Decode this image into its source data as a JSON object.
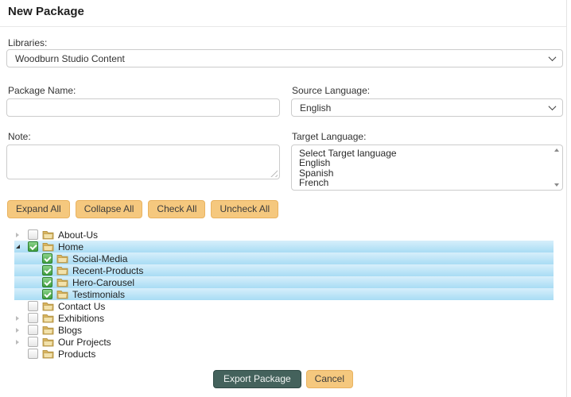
{
  "page": {
    "title": "New Package"
  },
  "form": {
    "libraries": {
      "label": "Libraries:",
      "value": "Woodburn Studio Content"
    },
    "package_name": {
      "label": "Package Name:",
      "value": ""
    },
    "source_language": {
      "label": "Source Language:",
      "value": "English"
    },
    "note": {
      "label": "Note:",
      "value": ""
    },
    "target_language": {
      "label": "Target Language:",
      "options": [
        "Select Target language",
        "English",
        "Spanish",
        "French"
      ]
    }
  },
  "toolbar": {
    "buttons": [
      {
        "label": "Expand All"
      },
      {
        "label": "Collapse All"
      },
      {
        "label": "Check All"
      },
      {
        "label": "Uncheck All"
      }
    ]
  },
  "tree": {
    "items": [
      {
        "label": "About-Us",
        "level": 0,
        "expander": "collapsed",
        "checked": false,
        "selected": false
      },
      {
        "label": "Home",
        "level": 0,
        "expander": "expanded",
        "checked": true,
        "selected": true
      },
      {
        "label": "Social-Media",
        "level": 1,
        "expander": "none",
        "checked": true,
        "selected": true
      },
      {
        "label": "Recent-Products",
        "level": 1,
        "expander": "none",
        "checked": true,
        "selected": true
      },
      {
        "label": "Hero-Carousel",
        "level": 1,
        "expander": "none",
        "checked": true,
        "selected": true
      },
      {
        "label": "Testimonials",
        "level": 1,
        "expander": "none",
        "checked": true,
        "selected": true
      },
      {
        "label": "Contact Us",
        "level": 0,
        "expander": "none",
        "checked": false,
        "selected": false
      },
      {
        "label": "Exhibitions",
        "level": 0,
        "expander": "collapsed",
        "checked": false,
        "selected": false
      },
      {
        "label": "Blogs",
        "level": 0,
        "expander": "collapsed",
        "checked": false,
        "selected": false
      },
      {
        "label": "Our Projects",
        "level": 0,
        "expander": "collapsed",
        "checked": false,
        "selected": false
      },
      {
        "label": "Products",
        "level": 0,
        "expander": "none",
        "checked": false,
        "selected": false
      }
    ]
  },
  "footer": {
    "export_label": "Export Package",
    "cancel_label": "Cancel"
  },
  "colors": {
    "tan_button_bg": "#f5c87e",
    "tan_button_border": "#e9b360",
    "primary_button_bg": "#44625c",
    "primary_button_border": "#2e4944",
    "tree_selected_top": "#d7effb",
    "tree_selected_bottom": "#a8dcf4",
    "checkbox_checked_green": "#3f9e3f",
    "folder_tan": "#d9b45f"
  }
}
